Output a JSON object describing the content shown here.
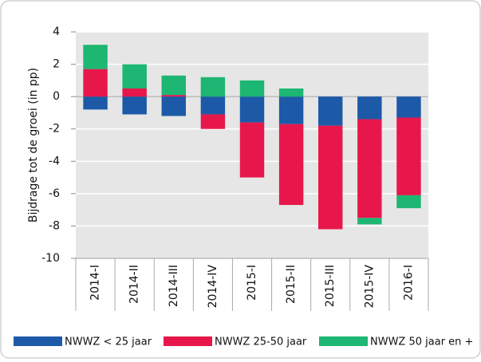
{
  "chart_data": {
    "type": "stacked-bar",
    "ylabel": "Bijdrage tot de groei (in pp)",
    "categories": [
      "2014-I",
      "2014-II",
      "2014-III",
      "2014-IV",
      "2015-I",
      "2015-II",
      "2015-III",
      "2015-IV",
      "2016-I"
    ],
    "series": [
      {
        "name": "NWWZ < 25 jaar",
        "color": "#1c5aa8",
        "values": [
          -0.8,
          -1.1,
          -1.2,
          -1.1,
          -1.6,
          -1.7,
          -1.8,
          -1.4,
          -1.3
        ]
      },
      {
        "name": "NWWZ 25-50 jaar",
        "color": "#e8174b",
        "values": [
          1.7,
          0.5,
          0.1,
          -0.9,
          -3.4,
          -5.0,
          -6.4,
          -6.1,
          -4.8
        ]
      },
      {
        "name": "NWWZ 50 jaar en +",
        "color": "#1db672",
        "values": [
          1.5,
          1.5,
          1.2,
          1.2,
          1.0,
          0.5,
          0,
          -0.4,
          -0.8
        ]
      }
    ],
    "ylim": [
      -10,
      4
    ],
    "yticks": [
      -10,
      -8,
      -6,
      -4,
      -2,
      0,
      2,
      4
    ],
    "grid": true
  }
}
